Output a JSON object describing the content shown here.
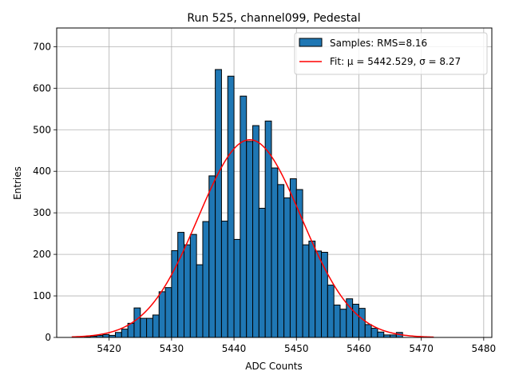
{
  "chart_data": {
    "type": "bar",
    "title": "Run 525, channel099, Pedestal",
    "xlabel": "ADC Counts",
    "ylabel": "Entries",
    "xlim": [
      5411.6,
      5481.3
    ],
    "ylim": [
      0,
      745
    ],
    "xticks": [
      5420,
      5430,
      5440,
      5450,
      5460,
      5470,
      5480
    ],
    "yticks": [
      0,
      100,
      200,
      300,
      400,
      500,
      600,
      700
    ],
    "grid": true,
    "legend_position": "top-right",
    "bin_width": 1,
    "bins": {
      "x_start": [
        5416,
        5417,
        5418,
        5419,
        5420,
        5421,
        5422,
        5423,
        5424,
        5425,
        5426,
        5427,
        5428,
        5429,
        5430,
        5431,
        5432,
        5433,
        5434,
        5435,
        5436,
        5437,
        5438,
        5439,
        5440,
        5441,
        5442,
        5443,
        5444,
        5445,
        5446,
        5447,
        5448,
        5449,
        5450,
        5451,
        5452,
        5453,
        5454,
        5455,
        5456,
        5457,
        5458,
        5459,
        5460,
        5461,
        5462,
        5463,
        5464,
        5465,
        5466
      ],
      "counts": [
        1,
        3,
        5,
        7,
        5,
        12,
        20,
        34,
        71,
        46,
        46,
        54,
        110,
        120,
        209,
        253,
        223,
        248,
        175,
        279,
        389,
        645,
        280,
        629,
        236,
        581,
        472,
        510,
        311,
        521,
        408,
        368,
        336,
        382,
        356,
        223,
        232,
        208,
        205,
        126,
        78,
        68,
        93,
        80,
        70,
        31,
        22,
        13,
        6,
        6,
        12
      ]
    },
    "histogram_series": {
      "label": "Samples: RMS=8.16",
      "color": "#1f77b4",
      "edge_color": "#000000"
    },
    "fit_series": {
      "label": "Fit: μ = 5442.529, σ = 8.27",
      "color": "#ff0000",
      "mu": 5442.529,
      "sigma": 8.27,
      "amplitude": 476,
      "x_range": [
        5414,
        5472
      ]
    }
  }
}
